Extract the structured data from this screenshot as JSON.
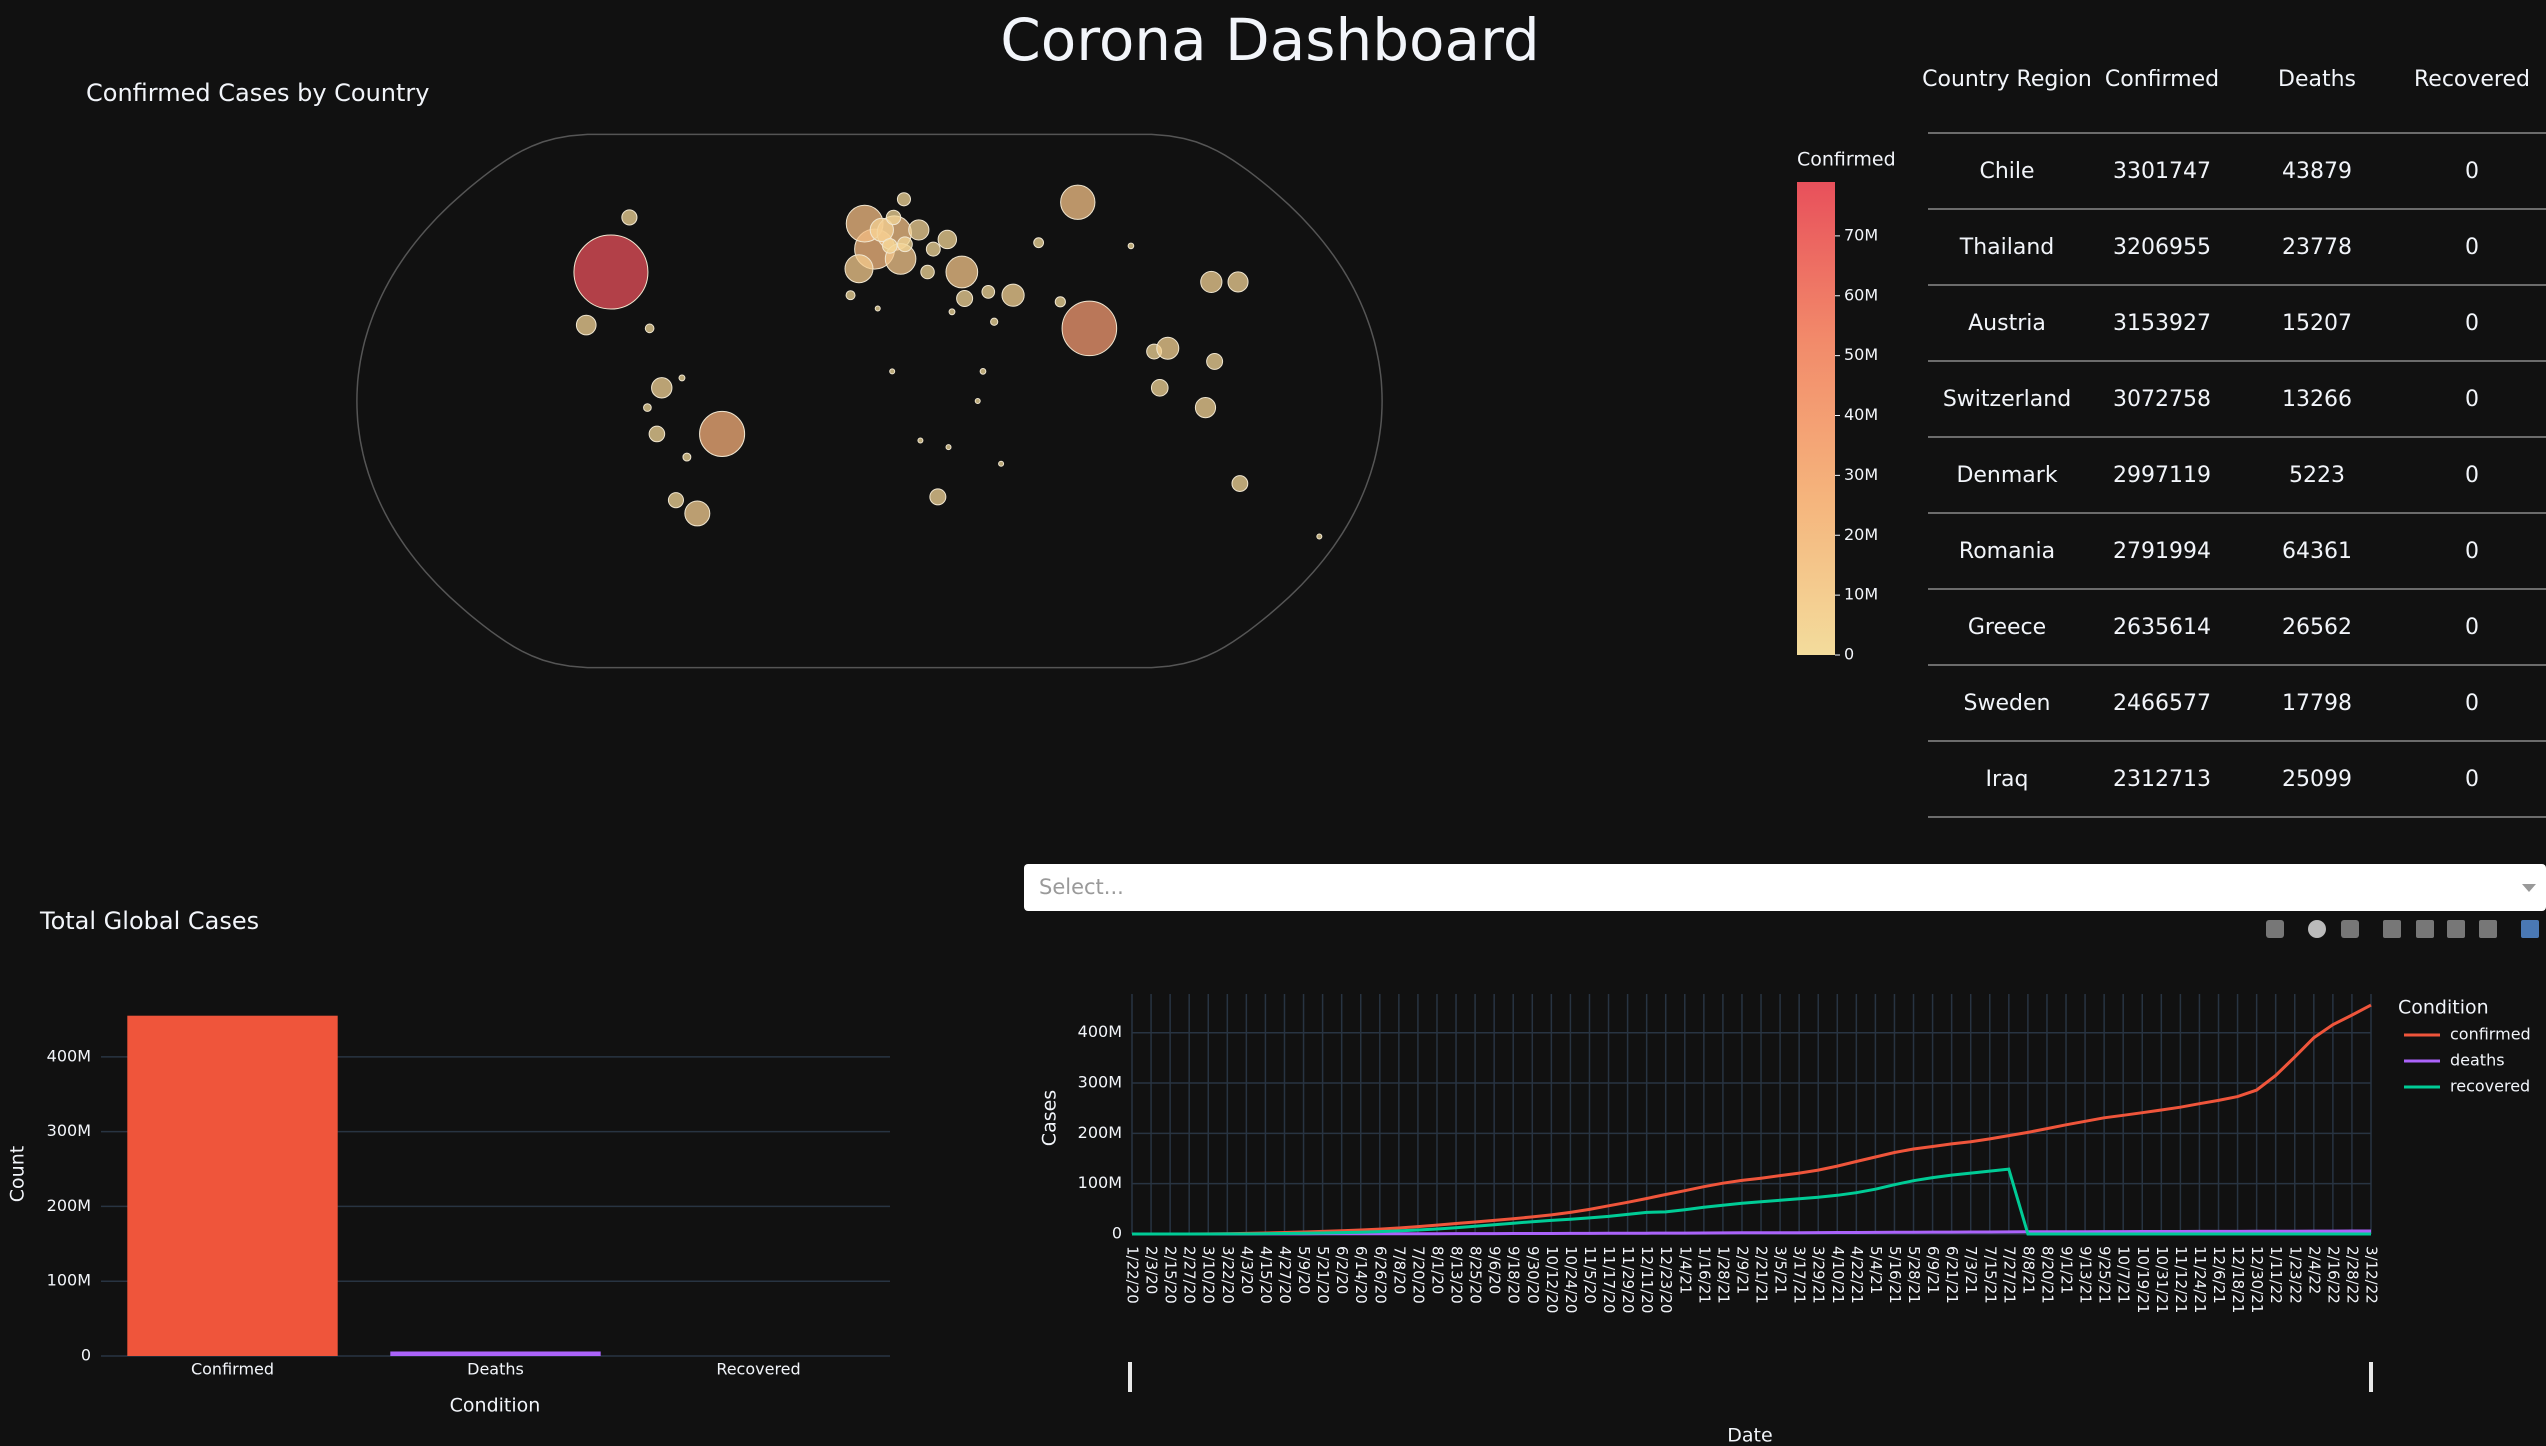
{
  "title": "Corona Dashboard",
  "table": {
    "columns": [
      "Country Region",
      "Confirmed",
      "Deaths",
      "Recovered"
    ],
    "rows": [
      [
        "Chile",
        3301747,
        43879,
        0
      ],
      [
        "Thailand",
        3206955,
        23778,
        0
      ],
      [
        "Austria",
        3153927,
        15207,
        0
      ],
      [
        "Switzerland",
        3072758,
        13266,
        0
      ],
      [
        "Denmark",
        2997119,
        5223,
        0
      ],
      [
        "Romania",
        2791994,
        64361,
        0
      ],
      [
        "Greece",
        2635614,
        26562,
        0
      ],
      [
        "Sweden",
        2466577,
        17798,
        0
      ],
      [
        "Iraq",
        2312713,
        25099,
        0
      ]
    ]
  },
  "select": {
    "placeholder": "Select..."
  },
  "chart_data": [
    {
      "type": "scatter_geo",
      "title": "Confirmed Cases by Country",
      "lon": [
        -98,
        -52,
        79,
        90,
        2,
        -2,
        10,
        12,
        -4,
        35,
        -64,
        53,
        138,
        128,
        118,
        -73,
        -102,
        20,
        31,
        5,
        -100,
        -75,
        -71,
        101,
        102,
        122,
        106,
        134,
        25,
        30,
        45,
        8,
        38,
        44,
        35,
        70,
        22,
        15,
        10,
        8,
        14,
        25,
        -7,
        3,
        40,
        -65,
        -66,
        -78,
        -79,
        67,
        103,
        172,
        47,
        18,
        28
      ],
      "lat": [
        39,
        -10,
        22,
        61,
        46,
        54,
        51,
        43,
        40,
        39,
        -34,
        32,
        36,
        36,
        -2,
        4,
        23,
        52,
        49,
        52,
        56,
        -10,
        -30,
        15,
        4,
        12,
        16,
        -25,
        -29,
        27,
        24,
        9,
        0,
        33,
        31,
        30,
        39,
        62,
        56,
        47,
        47.5,
        46,
        32,
        28,
        9,
        -17,
        7,
        -2,
        22,
        48,
        47,
        -41,
        -19,
        -12,
        -14
      ],
      "values": [
        79000000,
        29300000,
        43000000,
        17000000,
        23000000,
        19500000,
        17000000,
        13500000,
        11300000,
        14500000,
        9000000,
        7100000,
        5800000,
        6500000,
        5900000,
        6000000,
        5600000,
        5900000,
        4900000,
        7800000,
        3300000,
        3500000,
        3301747,
        3206955,
        4000000,
        3670000,
        7000000,
        3600000,
        3700000,
        500000,
        750000,
        250000,
        320000,
        2312713,
        3700000,
        1500000,
        2635614,
        2466577,
        2997119,
        3072758,
        3153927,
        2791994,
        1160000,
        265000,
        470000,
        900000,
        510000,
        850000,
        1080000,
        1390000,
        460000,
        300000,
        64000,
        99000,
        313000
      ],
      "colorbar": {
        "title": "Confirmed",
        "lim": [
          0,
          79000000
        ],
        "ticks": [
          0,
          {
            "value": 10000000,
            "label": "10M"
          },
          {
            "value": 20000000,
            "label": "20M"
          },
          {
            "value": 30000000,
            "label": "30M"
          },
          {
            "value": 40000000,
            "label": "40M"
          },
          {
            "value": 50000000,
            "label": "50M"
          },
          {
            "value": 60000000,
            "label": "60M"
          },
          {
            "value": 70000000,
            "label": "70M"
          }
        ]
      },
      "colorscale": [
        "#f3dc9c",
        "#f5b47c",
        "#f28a6a",
        "#e8505b"
      ]
    },
    {
      "type": "bar",
      "title": "Total Global Cases",
      "categories": [
        "Confirmed",
        "Deaths",
        "Recovered"
      ],
      "values": [
        455000000,
        6040000,
        0
      ],
      "colors": [
        "#ef553b",
        "#ab63fa",
        "#00cc96"
      ],
      "xlabel": "Condition",
      "ylabel": "Count",
      "ylim": [
        0,
        480000000
      ],
      "yticks": [
        0,
        {
          "value": 100000000,
          "label": "100M"
        },
        {
          "value": 200000000,
          "label": "200M"
        },
        {
          "value": 300000000,
          "label": "300M"
        },
        {
          "value": 400000000,
          "label": "400M"
        }
      ],
      "grid": true
    },
    {
      "type": "line",
      "x": [
        "1/22/20",
        "2/3/20",
        "2/15/20",
        "2/27/20",
        "3/10/20",
        "3/22/20",
        "4/3/20",
        "4/15/20",
        "4/27/20",
        "5/9/20",
        "5/21/20",
        "6/2/20",
        "6/14/20",
        "6/26/20",
        "7/8/20",
        "7/20/20",
        "8/1/20",
        "8/13/20",
        "8/25/20",
        "9/6/20",
        "9/18/20",
        "9/30/20",
        "10/12/20",
        "10/24/20",
        "11/5/20",
        "11/17/20",
        "11/29/20",
        "12/11/20",
        "12/23/20",
        "1/4/21",
        "1/16/21",
        "1/28/21",
        "2/9/21",
        "2/21/21",
        "3/5/21",
        "3/17/21",
        "3/29/21",
        "4/10/21",
        "4/22/21",
        "5/4/21",
        "5/16/21",
        "5/28/21",
        "6/9/21",
        "6/21/21",
        "7/3/21",
        "7/15/21",
        "7/27/21",
        "8/8/21",
        "8/20/21",
        "9/1/21",
        "9/13/21",
        "9/25/21",
        "10/7/21",
        "10/19/21",
        "10/31/21",
        "11/12/21",
        "11/24/21",
        "12/6/21",
        "12/18/21",
        "12/30/21",
        "1/11/22",
        "1/23/22",
        "2/4/22",
        "2/16/22",
        "2/28/22",
        "3/12/22"
      ],
      "series": [
        {
          "name": "confirmed",
          "color": "#ef553b",
          "values": [
            555,
            17400,
            69000,
            83000,
            119000,
            337000,
            1100000,
            2000000,
            3000000,
            4000000,
            5100000,
            6400000,
            7900000,
            9800000,
            12000000,
            14700000,
            17600000,
            20900000,
            23800000,
            27000000,
            30400000,
            34000000,
            37900000,
            43000000,
            48800000,
            56000000,
            63000000,
            70600000,
            78500000,
            86000000,
            94000000,
            101000000,
            106500000,
            111000000,
            116000000,
            121000000,
            127000000,
            135000000,
            144000000,
            153000000,
            162000000,
            169000000,
            174000000,
            179000000,
            183500000,
            189000000,
            195500000,
            202000000,
            209500000,
            217000000,
            224000000,
            231000000,
            236000000,
            241000000,
            246500000,
            252000000,
            259000000,
            265500000,
            273000000,
            286000000,
            315000000,
            352000000,
            390000000,
            416000000,
            435000000,
            455000000
          ]
        },
        {
          "name": "deaths",
          "color": "#ab63fa",
          "values": [
            17,
            362,
            1666,
            2800,
            4300,
            14700,
            59000,
            134000,
            211000,
            280000,
            332000,
            381000,
            433000,
            494000,
            551000,
            611000,
            677000,
            743000,
            810000,
            877000,
            946000,
            1010000,
            1074000,
            1143000,
            1222000,
            1322000,
            1442000,
            1574000,
            1713000,
            1860000,
            2030000,
            2190000,
            2330000,
            2440000,
            2550000,
            2660000,
            2790000,
            2930000,
            3070000,
            3250000,
            3410000,
            3550000,
            3700000,
            3860000,
            3970000,
            4070000,
            4190000,
            4300000,
            4430000,
            4550000,
            4660000,
            4760000,
            4840000,
            4910000,
            4970000,
            5040000,
            5110000,
            5180000,
            5260000,
            5340000,
            5420000,
            5530000,
            5680000,
            5820000,
            5930000,
            6040000
          ]
        },
        {
          "name": "recovered",
          "color": "#00cc96",
          "values": [
            28,
            500,
            11000,
            33000,
            64000,
            100000,
            230000,
            500000,
            900000,
            1400000,
            2000000,
            2700000,
            3600000,
            4700000,
            6100000,
            7900000,
            10000000,
            12500000,
            15500000,
            18500000,
            21500000,
            24500000,
            27000000,
            29500000,
            32000000,
            35000000,
            39000000,
            43000000,
            44000000,
            48000000,
            53000000,
            57000000,
            61000000,
            64000000,
            67000000,
            70000000,
            73000000,
            77000000,
            82000000,
            89000000,
            98000000,
            106000000,
            112000000,
            117000000,
            121000000,
            125000000,
            129000000,
            0,
            0,
            0,
            0,
            0,
            0,
            0,
            0,
            0,
            0,
            0,
            0,
            0,
            0,
            0,
            0,
            0,
            0,
            0
          ]
        }
      ],
      "xlabel": "Date",
      "ylabel": "Cases",
      "legend_title": "Condition",
      "legend": "right",
      "ylim": [
        0,
        477000000
      ],
      "yticks": [
        0,
        {
          "value": 100000000,
          "label": "100M"
        },
        {
          "value": 200000000,
          "label": "200M"
        },
        {
          "value": 300000000,
          "label": "300M"
        },
        {
          "value": 400000000,
          "label": "400M"
        }
      ],
      "grid": true
    }
  ]
}
